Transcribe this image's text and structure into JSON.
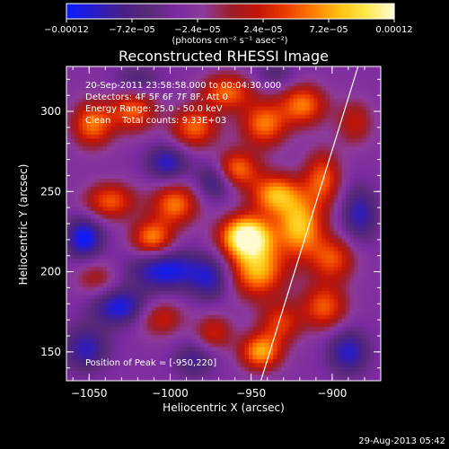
{
  "chart_data": {
    "type": "heatmap",
    "title": "Reconstructed RHESSI Image",
    "xlabel": "Heliocentric X (arcsec)",
    "ylabel": "Heliocentric Y (arcsec)",
    "xlim": [
      -1064,
      -870
    ],
    "ylim": [
      132,
      328
    ],
    "x_ticks": [
      {
        "value": -1050,
        "label": "−1050"
      },
      {
        "value": -1000,
        "label": "−1000"
      },
      {
        "value": -950,
        "label": "−950"
      },
      {
        "value": -900,
        "label": "−900"
      }
    ],
    "y_ticks": [
      {
        "value": 150,
        "label": "150"
      },
      {
        "value": 200,
        "label": "200"
      },
      {
        "value": 250,
        "label": "250"
      },
      {
        "value": 300,
        "label": "300"
      }
    ],
    "colorbar": {
      "min": -0.00012,
      "max": 0.00012,
      "ticks": [
        {
          "value": -0.00012,
          "label": "−0.00012"
        },
        {
          "value": -7.2e-05,
          "label": "−7.2e−05"
        },
        {
          "value": -2.4e-05,
          "label": "−2.4e−05"
        },
        {
          "value": 2.4e-05,
          "label": "2.4e−05"
        },
        {
          "value": 7.2e-05,
          "label": "7.2e−05"
        },
        {
          "value": 0.00012,
          "label": "0.00012"
        }
      ],
      "unit_label": "(photons cm⁻² s⁻¹ asec⁻²)",
      "colors": [
        "#0a1cff",
        "#2a1cc8",
        "#46208a",
        "#5a2a78",
        "#7a2aa0",
        "#8c3a9c",
        "#9a1f2c",
        "#c21407",
        "#ea3a00",
        "#ff7a00",
        "#ffbe10",
        "#ffe84a",
        "#fffbd0"
      ]
    },
    "annotations": {
      "time_range": "20-Sep-2011 23:58:58.000 to 00:04:30.000",
      "detectors": "Detectors: 4F 5F 6F 7F 8F, Att 0",
      "energy": "Energy Range: 25.0 - 50.0 keV",
      "clean": "Clean    Total counts: 9.33E+03",
      "peak": "Position of Peak = [-950,220]"
    },
    "peak": {
      "x": -950,
      "y": 220
    },
    "limb_line": [
      {
        "x": -944,
        "y": 132
      },
      {
        "x": -884,
        "y": 328
      }
    ],
    "sources": [
      {
        "x": -953,
        "y": 222,
        "amp": 1.7,
        "sx": 11,
        "sy": 9
      },
      {
        "x": -946,
        "y": 201,
        "amp": 1.15,
        "sx": 12,
        "sy": 12
      },
      {
        "x": -920,
        "y": 228,
        "amp": 1.2,
        "sx": 10,
        "sy": 13
      },
      {
        "x": -935,
        "y": 248,
        "amp": 1.1,
        "sx": 11,
        "sy": 9
      },
      {
        "x": -960,
        "y": 264,
        "amp": 1.0,
        "sx": 10,
        "sy": 8
      },
      {
        "x": -942,
        "y": 292,
        "amp": 0.95,
        "sx": 10,
        "sy": 10
      },
      {
        "x": -918,
        "y": 304,
        "amp": 0.95,
        "sx": 10,
        "sy": 9
      },
      {
        "x": -906,
        "y": 258,
        "amp": 0.85,
        "sx": 8,
        "sy": 12
      },
      {
        "x": -900,
        "y": 208,
        "amp": 0.8,
        "sx": 10,
        "sy": 10
      },
      {
        "x": -905,
        "y": 178,
        "amp": 0.85,
        "sx": 10,
        "sy": 10
      },
      {
        "x": -932,
        "y": 168,
        "amp": 0.7,
        "sx": 9,
        "sy": 9
      },
      {
        "x": -944,
        "y": 150,
        "amp": 1.1,
        "sx": 9,
        "sy": 8
      },
      {
        "x": -973,
        "y": 162,
        "amp": 0.6,
        "sx": 8,
        "sy": 8
      },
      {
        "x": -997,
        "y": 242,
        "amp": 0.95,
        "sx": 10,
        "sy": 9
      },
      {
        "x": -1011,
        "y": 221,
        "amp": 1.0,
        "sx": 9,
        "sy": 8
      },
      {
        "x": -1037,
        "y": 244,
        "amp": 0.85,
        "sx": 11,
        "sy": 8
      },
      {
        "x": -1048,
        "y": 292,
        "amp": 0.95,
        "sx": 9,
        "sy": 10
      },
      {
        "x": -1023,
        "y": 300,
        "amp": 0.85,
        "sx": 10,
        "sy": 9
      },
      {
        "x": -985,
        "y": 290,
        "amp": 0.9,
        "sx": 10,
        "sy": 9
      },
      {
        "x": -965,
        "y": 312,
        "amp": 0.9,
        "sx": 11,
        "sy": 8
      },
      {
        "x": -1006,
        "y": 171,
        "amp": 0.6,
        "sx": 10,
        "sy": 8
      },
      {
        "x": -1046,
        "y": 196,
        "amp": 0.45,
        "sx": 9,
        "sy": 8
      },
      {
        "x": -886,
        "y": 293,
        "amp": 0.55,
        "sx": 8,
        "sy": 10
      },
      {
        "x": -1031,
        "y": 178,
        "amp": -0.8,
        "sx": 12,
        "sy": 8
      },
      {
        "x": -1053,
        "y": 221,
        "amp": -0.9,
        "sx": 8,
        "sy": 9
      },
      {
        "x": -1003,
        "y": 201,
        "amp": -0.85,
        "sx": 15,
        "sy": 9
      },
      {
        "x": -972,
        "y": 258,
        "amp": -0.7,
        "sx": 8,
        "sy": 9
      },
      {
        "x": -1002,
        "y": 268,
        "amp": -0.7,
        "sx": 9,
        "sy": 8
      },
      {
        "x": -1052,
        "y": 152,
        "amp": -0.65,
        "sx": 10,
        "sy": 10
      },
      {
        "x": -975,
        "y": 196,
        "amp": -0.6,
        "sx": 9,
        "sy": 10
      },
      {
        "x": -890,
        "y": 150,
        "amp": -0.7,
        "sx": 9,
        "sy": 10
      },
      {
        "x": -883,
        "y": 236,
        "amp": -0.65,
        "sx": 8,
        "sy": 12
      },
      {
        "x": -1020,
        "y": 320,
        "amp": -0.4,
        "sx": 10,
        "sy": 6
      },
      {
        "x": -935,
        "y": 323,
        "amp": -0.35,
        "sx": 9,
        "sy": 6
      },
      {
        "x": -985,
        "y": 145,
        "amp": -0.5,
        "sx": 9,
        "sy": 8
      }
    ]
  },
  "footer": {
    "date": "29-Aug-2013 05:42"
  }
}
